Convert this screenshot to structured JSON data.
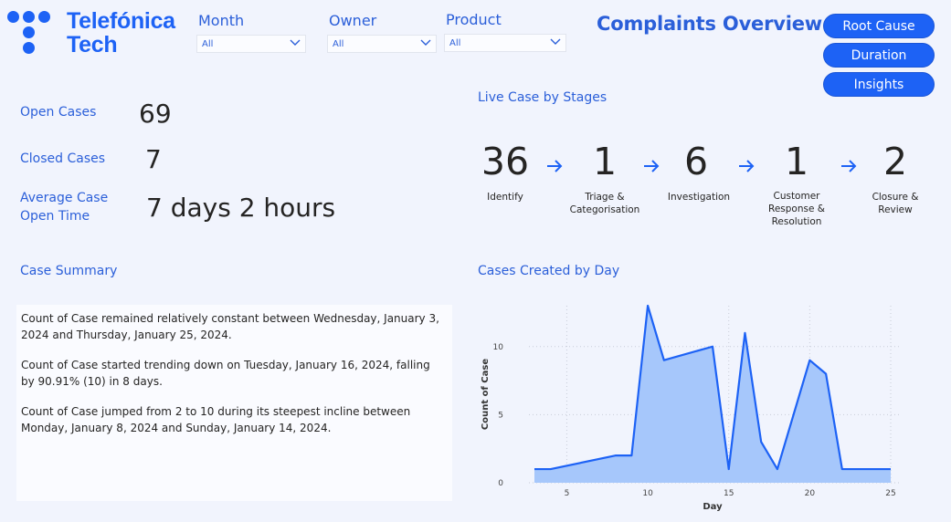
{
  "brand": {
    "line1": "Telefónica",
    "line2": "Tech",
    "accent": "#1d62f5"
  },
  "filters": [
    {
      "label": "Month",
      "value": "All"
    },
    {
      "label": "Owner",
      "value": "All"
    },
    {
      "label": "Product",
      "value": "All"
    }
  ],
  "header": {
    "title": "Complaints Overview"
  },
  "nav_buttons": [
    "Root Cause",
    "Duration",
    "Insights"
  ],
  "kpis": [
    {
      "label_lines": [
        "Open Cases"
      ],
      "value": "69"
    },
    {
      "label_lines": [
        "Closed Cases"
      ],
      "value": "7"
    },
    {
      "label_lines": [
        "Average Case",
        "Open Time"
      ],
      "value": "7 days 2 hours"
    }
  ],
  "stages": {
    "title": "Live Case by Stages",
    "items": [
      {
        "value": "36",
        "label_lines": [
          "Identify"
        ]
      },
      {
        "value": "1",
        "label_lines": [
          "Triage &",
          "Categorisation"
        ]
      },
      {
        "value": "6",
        "label_lines": [
          "Investigation"
        ]
      },
      {
        "value": "1",
        "label_lines": [
          "Customer",
          "Response &",
          "Resolution"
        ]
      },
      {
        "value": "2",
        "label_lines": [
          "Closure &",
          "Review"
        ]
      }
    ]
  },
  "summary": {
    "title": "Case Summary",
    "paragraphs": [
      "Count of Case remained relatively constant between Wednesday, January 3, 2024 and Thursday, January 25, 2024.",
      "Count of Case started trending down on Tuesday, January 16, 2024, falling by 90.91% (10) in 8 days.",
      "Count of Case jumped from 2 to 10 during its steepest incline between Monday, January 8, 2024 and Sunday, January 14, 2024."
    ]
  },
  "chart_title": "Cases Created by Day",
  "chart_data": {
    "type": "area",
    "title": "Cases Created by Day",
    "xlabel": "Day",
    "ylabel": "Count of Case",
    "x": [
      3,
      4,
      8,
      9,
      10,
      11,
      14,
      15,
      16,
      17,
      18,
      20,
      21,
      22,
      25
    ],
    "values": [
      1,
      1,
      2,
      2,
      13,
      9,
      10,
      1,
      11,
      3,
      1,
      9,
      8,
      1,
      1
    ],
    "xlim": [
      3,
      25
    ],
    "ylim": [
      0,
      13
    ],
    "xticks": [
      5,
      10,
      15,
      20,
      25
    ],
    "yticks": [
      0,
      5,
      10
    ],
    "grid": true,
    "line_color": "#1d62f5",
    "fill_color": "#a6c7fb"
  }
}
